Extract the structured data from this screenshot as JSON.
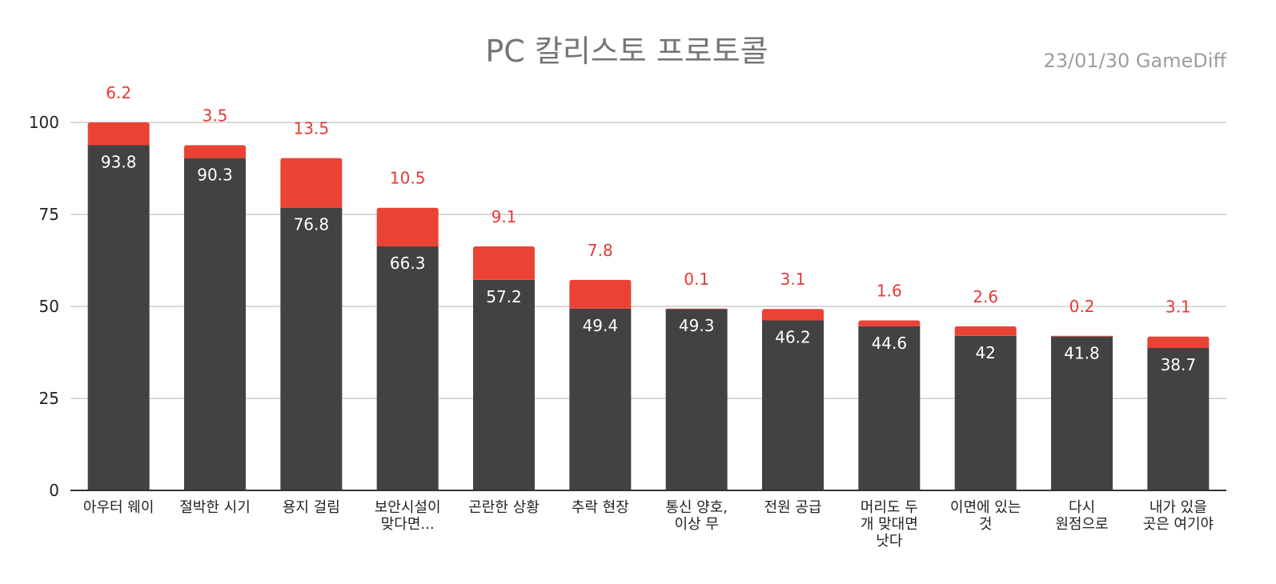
{
  "chart_data": {
    "type": "bar",
    "stacked": true,
    "title": "PC 칼리스토 프로토콜",
    "subtitle": "23/01/30  GameDiff",
    "xlabel": "",
    "ylabel": "",
    "ylim": [
      0,
      100
    ],
    "yticks": [
      0,
      25,
      50,
      75,
      100
    ],
    "grid": true,
    "legend": "none",
    "categories": [
      [
        "아우터 웨이"
      ],
      [
        "절박한 시기"
      ],
      [
        "용지 걸림"
      ],
      [
        "보안시설이",
        "맞다면..."
      ],
      [
        "곤란한 상황"
      ],
      [
        "추락 현장"
      ],
      [
        "통신 양호,",
        "이상 무"
      ],
      [
        "전원 공급"
      ],
      [
        "머리도 두",
        "개 맞대면",
        "낫다"
      ],
      [
        "이면에 있는",
        "것"
      ],
      [
        "다시",
        "원점으로"
      ],
      [
        "내가 있을",
        "곳은 여기야"
      ]
    ],
    "series": [
      {
        "color": "#424242",
        "values": [
          93.8,
          90.3,
          76.8,
          66.3,
          57.2,
          49.4,
          49.3,
          46.2,
          44.6,
          42,
          41.8,
          38.7
        ],
        "labels": [
          "93.8",
          "90.3",
          "76.8",
          "66.3",
          "57.2",
          "49.4",
          "49.3",
          "46.2",
          "44.6",
          "42",
          "41.8",
          "38.7"
        ]
      },
      {
        "color": "#ea4335",
        "values": [
          6.2,
          3.5,
          13.5,
          10.5,
          9.1,
          7.8,
          0.1,
          3.1,
          1.6,
          2.6,
          0.2,
          3.1
        ],
        "labels": [
          "6.2",
          "3.5",
          "13.5",
          "10.5",
          "9.1",
          "7.8",
          "0.1",
          "3.1",
          "1.6",
          "2.6",
          "0.2",
          "3.1"
        ]
      }
    ],
    "colors": {
      "grid": "#cccccc",
      "axis": "#333333",
      "inner_label": "#ffffff",
      "top_label": "#e53935"
    }
  }
}
